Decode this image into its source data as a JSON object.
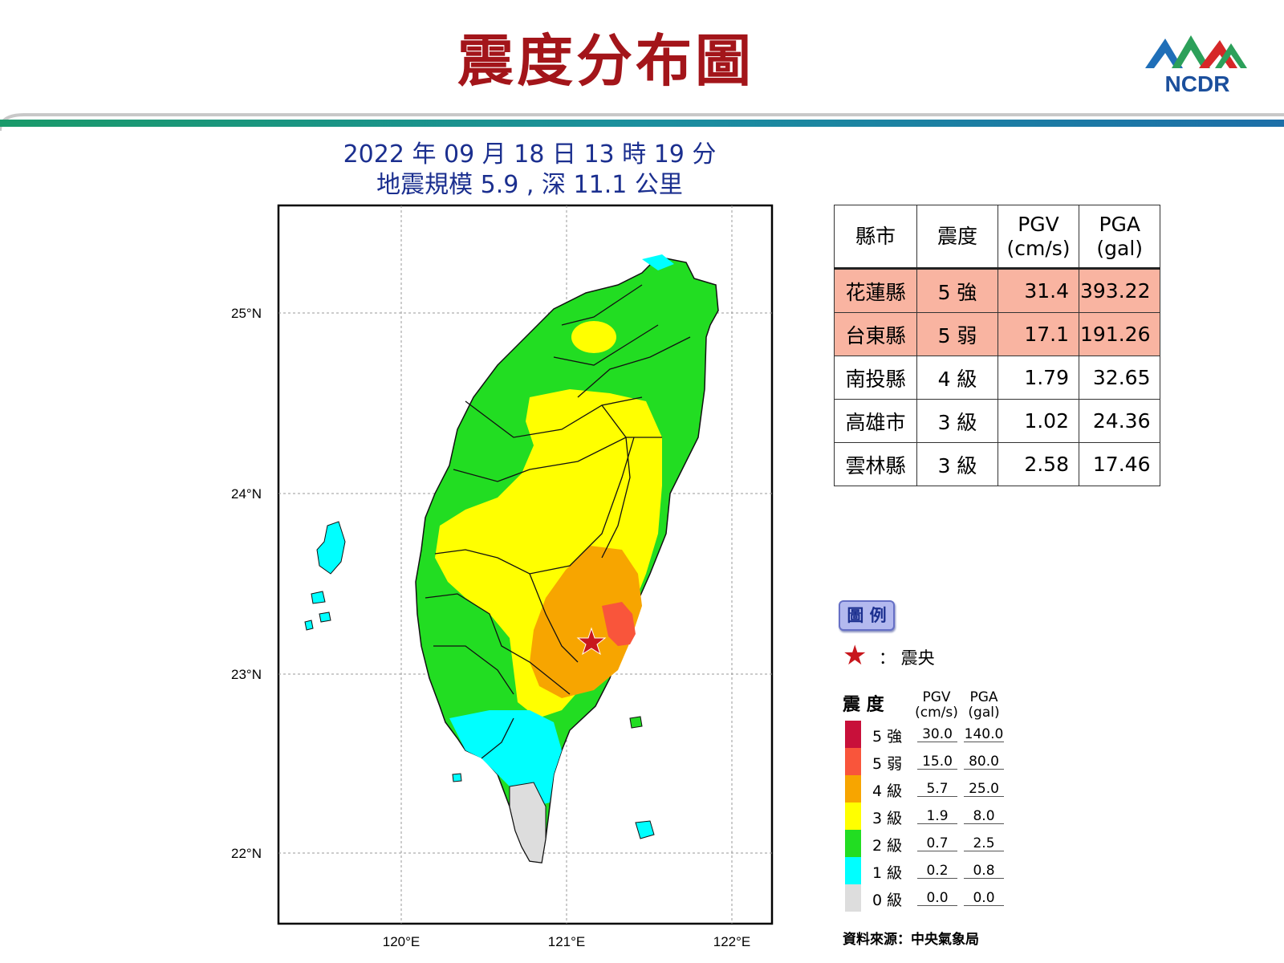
{
  "header": {
    "title": "震度分布圖",
    "logo_text": "NCDR",
    "logo_colors": [
      "#1f77b4",
      "#2ca05a",
      "#d62728"
    ]
  },
  "quake": {
    "line1": "2022 年 09 月 18 日 13 時 19 分",
    "line2": "地震規模 5.9 , 深 11.1 公里"
  },
  "map": {
    "lat_labels": [
      "25°N",
      "24°N",
      "23°N",
      "22°N"
    ],
    "lon_labels": [
      "120°E",
      "121°E",
      "122°E"
    ],
    "epicenter": {
      "lon": 121.18,
      "lat": 23.12
    },
    "colors": {
      "five_strong": "#c8103a",
      "five_weak": "#f9553b",
      "four": "#f7a500",
      "three": "#ffff00",
      "two": "#22dd22",
      "one": "#00ffff",
      "zero": "#dddddd"
    }
  },
  "table": {
    "headers": [
      "縣市",
      "震度",
      "PGV\n(cm/s)",
      "PGA\n(gal)"
    ],
    "header_pgv_1": "PGV",
    "header_pgv_2": "(cm/s)",
    "header_pga_1": "PGA",
    "header_pga_2": "(gal)",
    "rows": [
      {
        "county": "花蓮縣",
        "intensity": "5 強",
        "pgv": "31.4",
        "pga": "393.22"
      },
      {
        "county": "台東縣",
        "intensity": "5 弱",
        "pgv": "17.1",
        "pga": "191.26"
      },
      {
        "county": "南投縣",
        "intensity": "4 級",
        "pgv": "1.79",
        "pga": "32.65"
      },
      {
        "county": "高雄市",
        "intensity": "3 級",
        "pgv": "1.02",
        "pga": "24.36"
      },
      {
        "county": "雲林縣",
        "intensity": "3 級",
        "pgv": "2.58",
        "pga": "17.46"
      }
    ],
    "highlight_color": "#f9b4a1"
  },
  "legend": {
    "button": "圖 例",
    "epicenter_label": "： 震央",
    "title": "震 度",
    "pgv_1": "PGV",
    "pgv_2": "(cm/s)",
    "pga_1": "PGA",
    "pga_2": "(gal)",
    "levels": [
      {
        "label": "5 強",
        "pgv": "30.0",
        "pga": "140.0",
        "color": "#c8103a"
      },
      {
        "label": "5 弱",
        "pgv": "15.0",
        "pga": "80.0",
        "color": "#f9553b"
      },
      {
        "label": "4 級",
        "pgv": "5.7",
        "pga": "25.0",
        "color": "#f7a500"
      },
      {
        "label": "3 級",
        "pgv": "1.9",
        "pga": "8.0",
        "color": "#ffff00"
      },
      {
        "label": "2 級",
        "pgv": "0.7",
        "pga": "2.5",
        "color": "#22dd22"
      },
      {
        "label": "1 級",
        "pgv": "0.2",
        "pga": "0.8",
        "color": "#00ffff"
      },
      {
        "label": "0 級",
        "pgv": "0.0",
        "pga": "0.0",
        "color": "#dddddd"
      }
    ],
    "source": "資料來源：中央氣象局"
  }
}
